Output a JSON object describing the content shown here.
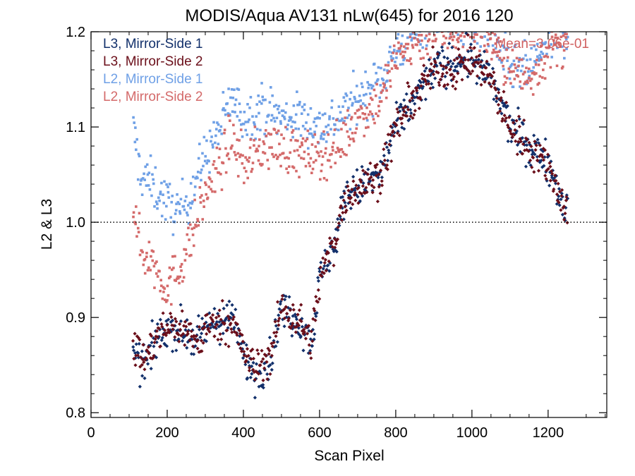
{
  "chart_data": {
    "type": "scatter",
    "title": "MODIS/Aqua AV131 nLw(645) for 2016 120",
    "xlabel": "Scan Pixel",
    "ylabel": "L2 & L3",
    "xlim": [
      0,
      1354
    ],
    "ylim": [
      0.795,
      1.2
    ],
    "xticks": [
      0,
      200,
      400,
      600,
      800,
      1000,
      1200
    ],
    "xtick_labels": [
      "0",
      "200",
      "400",
      "600",
      "800",
      "1000",
      "1200"
    ],
    "yticks": [
      0.8,
      0.9,
      1.0,
      1.1,
      1.2
    ],
    "ytick_labels": [
      "0.8",
      "0.9",
      "1.0",
      "1.1",
      "1.2"
    ],
    "reference_line": {
      "y": 1.0,
      "style": "dotted"
    },
    "annotation": "Mean=3.06e-01",
    "annotation_color": "#d06060",
    "legend_position": "top-left",
    "grid": false,
    "series": [
      {
        "name": "L3, Mirror-Side 1",
        "color": "#12306b",
        "marker": "diamond",
        "pixel_range": [
          110,
          1250
        ],
        "noise": 0.02,
        "profile": [
          [
            110,
            0.86
          ],
          [
            140,
            0.85
          ],
          [
            170,
            0.875
          ],
          [
            200,
            0.89
          ],
          [
            240,
            0.885
          ],
          [
            280,
            0.875
          ],
          [
            320,
            0.895
          ],
          [
            370,
            0.9
          ],
          [
            400,
            0.86
          ],
          [
            430,
            0.84
          ],
          [
            470,
            0.855
          ],
          [
            500,
            0.91
          ],
          [
            540,
            0.9
          ],
          [
            580,
            0.875
          ],
          [
            600,
            0.94
          ],
          [
            640,
            0.98
          ],
          [
            670,
            1.03
          ],
          [
            720,
            1.04
          ],
          [
            760,
            1.05
          ],
          [
            800,
            1.1
          ],
          [
            850,
            1.13
          ],
          [
            900,
            1.16
          ],
          [
            950,
            1.17
          ],
          [
            1000,
            1.17
          ],
          [
            1050,
            1.15
          ],
          [
            1100,
            1.1
          ],
          [
            1150,
            1.08
          ],
          [
            1200,
            1.065
          ],
          [
            1250,
            1.01
          ]
        ]
      },
      {
        "name": "L3, Mirror-Side 2",
        "color": "#6b0f1a",
        "marker": "diamond",
        "pixel_range": [
          110,
          1250
        ],
        "noise": 0.02,
        "profile": [
          [
            110,
            0.87
          ],
          [
            140,
            0.855
          ],
          [
            170,
            0.875
          ],
          [
            200,
            0.89
          ],
          [
            240,
            0.89
          ],
          [
            280,
            0.875
          ],
          [
            320,
            0.895
          ],
          [
            370,
            0.895
          ],
          [
            400,
            0.865
          ],
          [
            430,
            0.845
          ],
          [
            470,
            0.86
          ],
          [
            500,
            0.91
          ],
          [
            540,
            0.9
          ],
          [
            580,
            0.875
          ],
          [
            600,
            0.94
          ],
          [
            640,
            0.98
          ],
          [
            670,
            1.03
          ],
          [
            720,
            1.04
          ],
          [
            760,
            1.05
          ],
          [
            800,
            1.1
          ],
          [
            850,
            1.13
          ],
          [
            900,
            1.16
          ],
          [
            950,
            1.16
          ],
          [
            1000,
            1.17
          ],
          [
            1050,
            1.15
          ],
          [
            1100,
            1.1
          ],
          [
            1150,
            1.08
          ],
          [
            1200,
            1.06
          ],
          [
            1250,
            1.01
          ]
        ]
      },
      {
        "name": "L2, Mirror-Side 1",
        "color": "#6fa0e6",
        "marker": "square",
        "pixel_range": [
          110,
          1250
        ],
        "noise": 0.025,
        "profile": [
          [
            110,
            1.1
          ],
          [
            130,
            1.05
          ],
          [
            160,
            1.04
          ],
          [
            200,
            1.02
          ],
          [
            230,
            1.01
          ],
          [
            260,
            1.03
          ],
          [
            300,
            1.07
          ],
          [
            340,
            1.1
          ],
          [
            370,
            1.13
          ],
          [
            400,
            1.11
          ],
          [
            450,
            1.12
          ],
          [
            500,
            1.11
          ],
          [
            550,
            1.11
          ],
          [
            600,
            1.1
          ],
          [
            650,
            1.11
          ],
          [
            700,
            1.13
          ],
          [
            760,
            1.15
          ],
          [
            800,
            1.18
          ],
          [
            850,
            1.2
          ],
          [
            900,
            1.22
          ],
          [
            1000,
            1.21
          ],
          [
            1050,
            1.2
          ],
          [
            1100,
            1.16
          ],
          [
            1150,
            1.16
          ],
          [
            1200,
            1.19
          ],
          [
            1250,
            1.2
          ]
        ]
      },
      {
        "name": "L2, Mirror-Side 2",
        "color": "#d46a6a",
        "marker": "square",
        "pixel_range": [
          110,
          1250
        ],
        "noise": 0.025,
        "profile": [
          [
            110,
            1.02
          ],
          [
            130,
            0.97
          ],
          [
            160,
            0.96
          ],
          [
            200,
            0.93
          ],
          [
            230,
            0.95
          ],
          [
            260,
            0.98
          ],
          [
            300,
            1.03
          ],
          [
            340,
            1.06
          ],
          [
            370,
            1.09
          ],
          [
            400,
            1.06
          ],
          [
            450,
            1.08
          ],
          [
            500,
            1.08
          ],
          [
            550,
            1.07
          ],
          [
            600,
            1.07
          ],
          [
            650,
            1.08
          ],
          [
            700,
            1.11
          ],
          [
            760,
            1.13
          ],
          [
            800,
            1.17
          ],
          [
            850,
            1.19
          ],
          [
            900,
            1.2
          ],
          [
            1000,
            1.2
          ],
          [
            1050,
            1.19
          ],
          [
            1100,
            1.16
          ],
          [
            1150,
            1.15
          ],
          [
            1200,
            1.18
          ],
          [
            1250,
            1.19
          ]
        ]
      }
    ]
  }
}
